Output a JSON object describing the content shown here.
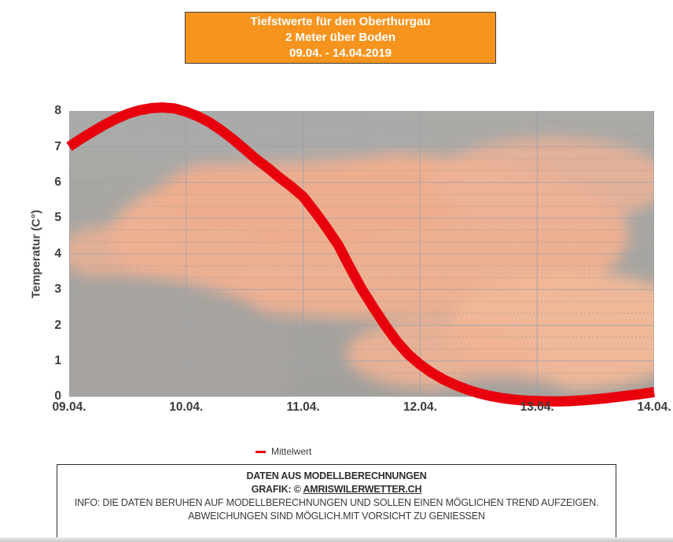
{
  "title_box": {
    "line1": "Tiefstwerte für den Oberthurgau",
    "line2": "2 Meter über Boden",
    "line3": "09.04. - 14.04.2019",
    "background_color": "#f7941e",
    "text_color": "#ffffff"
  },
  "legend": {
    "label": "Mittelwert",
    "color": "#e8000d"
  },
  "footer": {
    "line1": "DATEN AUS MODELLBERECHNUNGEN",
    "line2_prefix": "GRAFIK: © ",
    "line2_link": "AMRISWILERWETTER.CH",
    "line3": "INFO: DIE DATEN BERUHEN AUF MODELLBERECHNUNGEN UND SOLLEN EINEN MÖGLICHEN TREND AUFZEIGEN.",
    "line4": "ABWEICHUNGEN SIND MÖGLICH.MIT VORSICHT ZU GENIESSEN"
  },
  "chart_data": {
    "type": "line",
    "title": "Tiefstwerte für den Oberthurgau 2 Meter über Boden 09.04. - 14.04.2019",
    "xlabel": "",
    "ylabel": "Temperatur (C°)",
    "ylim": [
      0,
      8
    ],
    "y_ticks": [
      0,
      1,
      2,
      3,
      4,
      5,
      6,
      7,
      8
    ],
    "x_tick_labels": [
      "09.04.",
      "10.04.",
      "11.04.",
      "12.04.",
      "13.04.",
      "14.04."
    ],
    "grid": true,
    "minor_grid": "dashed thirds",
    "legend_position": "bottom",
    "line_color": "#e8000d",
    "grid_color": "#98a0ac",
    "minor_grid_color": "#a59c94",
    "series": [
      {
        "name": "Mittelwert",
        "color": "#e8000d",
        "x_days": [
          0.0,
          0.1,
          0.2,
          0.3,
          0.4,
          0.5,
          0.6,
          0.7,
          0.8,
          0.9,
          1.0,
          1.1,
          1.2,
          1.3,
          1.4,
          1.5,
          1.6,
          1.7,
          1.8,
          1.9,
          2.0,
          2.1,
          2.2,
          2.3,
          2.4,
          2.5,
          2.6,
          2.7,
          2.8,
          2.9,
          3.0,
          3.1,
          3.2,
          3.3,
          3.4,
          3.5,
          3.6,
          3.7,
          3.8,
          3.9,
          4.0,
          4.1,
          4.2,
          4.3,
          4.4,
          4.5,
          4.6,
          4.7,
          4.8,
          4.9,
          5.0
        ],
        "values": [
          7.0,
          7.22,
          7.42,
          7.61,
          7.78,
          7.92,
          8.02,
          8.08,
          8.1,
          8.07,
          7.98,
          7.85,
          7.68,
          7.46,
          7.21,
          6.93,
          6.65,
          6.4,
          6.13,
          5.88,
          5.6,
          5.18,
          4.73,
          4.25,
          3.62,
          3.02,
          2.5,
          2.0,
          1.55,
          1.18,
          0.9,
          0.67,
          0.48,
          0.33,
          0.2,
          0.1,
          0.02,
          -0.04,
          -0.08,
          -0.11,
          -0.12,
          -0.13,
          -0.13,
          -0.12,
          -0.1,
          -0.07,
          -0.04,
          0.0,
          0.04,
          0.08,
          0.13
        ]
      }
    ]
  }
}
